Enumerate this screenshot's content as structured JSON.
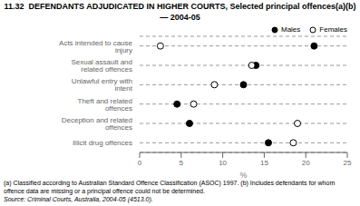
{
  "chart_data": {
    "type": "dot",
    "title": "11.32  DEFENDANTS ADJUDICATED IN HIGHER COURTS, Selected principal offences(a)(b) — 2004-05",
    "categories": [
      "Acts intended to cause injury",
      "Sexual assault and related offences",
      "Unlawful entry with intent",
      "Theft and related offences",
      "Deception and related offences",
      "Illicit drug offences"
    ],
    "series": [
      {
        "name": "Males",
        "color": "#000000",
        "marker": "filled",
        "values": [
          21.0,
          14.0,
          12.5,
          4.5,
          6.0,
          15.5
        ]
      },
      {
        "name": "Females",
        "color": "#000000",
        "marker": "open",
        "values": [
          2.5,
          13.5,
          9.0,
          6.5,
          19.0,
          18.5
        ]
      }
    ],
    "xlabel": "%",
    "xlim": [
      0,
      25
    ],
    "xticks": [
      0,
      5,
      10,
      15,
      20,
      25
    ],
    "grid": true,
    "legend": "upper right",
    "annotations": [
      "(a) Classified according to Australian Standard Offence Classification (ASOC) 1997. (b) Includes defendants for whom offence data are missing or a principal offence could not be determined.",
      "Source: Criminal Courts, Australia, 2004-05 (4513.0)."
    ]
  }
}
